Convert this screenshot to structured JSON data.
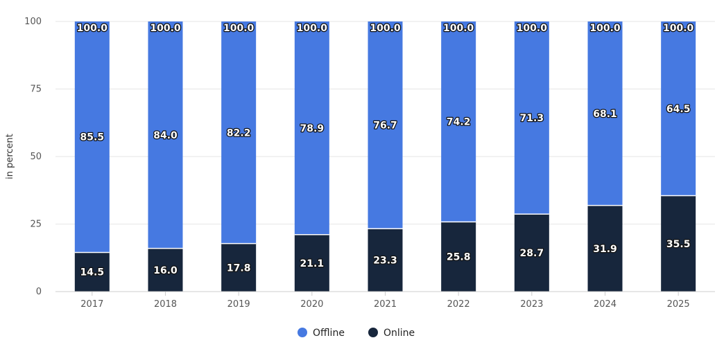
{
  "chart_data": {
    "type": "bar",
    "stacked": true,
    "categories": [
      "2017",
      "2018",
      "2019",
      "2020",
      "2021",
      "2022",
      "2023",
      "2024",
      "2025"
    ],
    "series": [
      {
        "name": "Online",
        "color": "#17263c",
        "values": [
          14.5,
          16.0,
          17.8,
          21.1,
          23.3,
          25.8,
          28.7,
          31.9,
          35.5
        ]
      },
      {
        "name": "Offline",
        "color": "#4679e1",
        "values": [
          85.5,
          84.0,
          82.2,
          78.9,
          76.7,
          74.2,
          71.3,
          68.1,
          64.5
        ]
      }
    ],
    "totals": [
      100.0,
      100.0,
      100.0,
      100.0,
      100.0,
      100.0,
      100.0,
      100.0,
      100.0
    ],
    "ylabel": "in percent",
    "xlabel": "",
    "ylim": [
      0,
      100
    ],
    "yticks": [
      0,
      25,
      50,
      75,
      100
    ],
    "grid": true,
    "legend": {
      "placement": "bottom-center",
      "entries": [
        "Offline",
        "Online"
      ]
    }
  }
}
